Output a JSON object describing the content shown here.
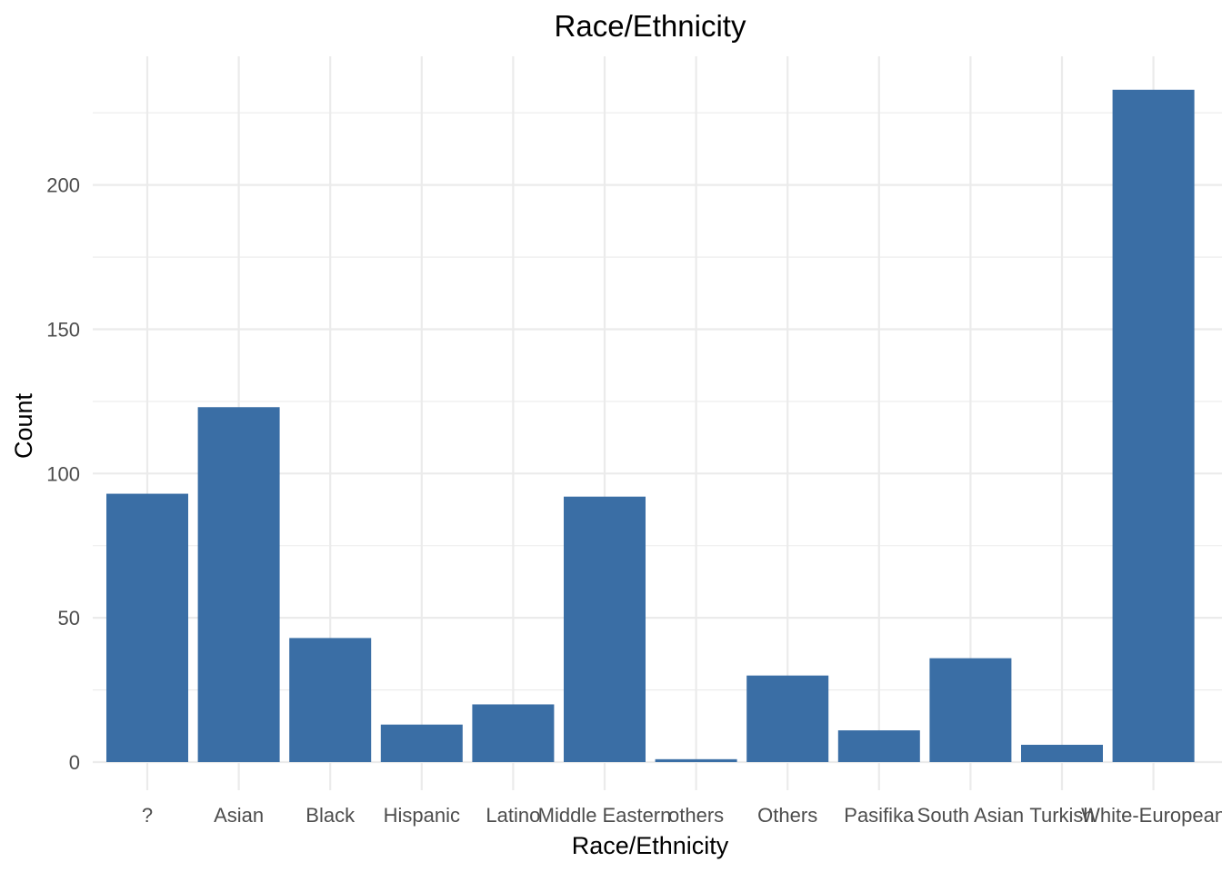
{
  "chart_data": {
    "type": "bar",
    "title": "Race/Ethnicity",
    "xlabel": "Race/Ethnicity",
    "ylabel": "Count",
    "categories": [
      "?",
      "Asian",
      "Black",
      "Hispanic",
      "Latino",
      "Middle Eastern",
      "others",
      "Others",
      "Pasifika",
      "South Asian",
      "Turkish",
      "White-European"
    ],
    "values": [
      93,
      123,
      43,
      13,
      20,
      92,
      1,
      30,
      11,
      36,
      6,
      233
    ],
    "ylim": [
      0,
      245
    ],
    "yticks": [
      0,
      50,
      100,
      150,
      200
    ],
    "grid": true,
    "legend": "none",
    "bar_color": "#3a6ea5"
  }
}
